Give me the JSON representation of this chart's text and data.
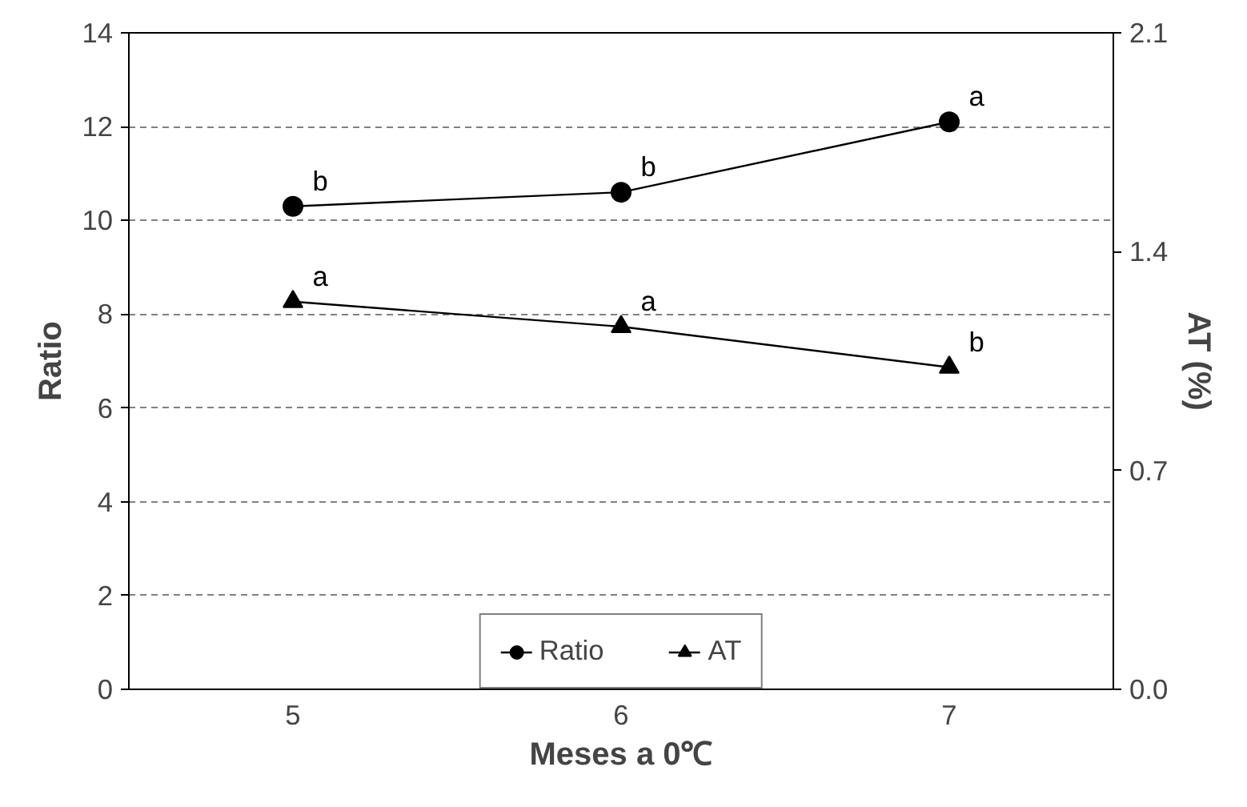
{
  "chart_data": {
    "type": "line",
    "xlabel": "Meses a 0℃",
    "ylabel": "Ratio",
    "y2label": "AT (%)",
    "categories": [
      "5",
      "6",
      "7"
    ],
    "series": [
      {
        "name": "Ratio",
        "color": "#000000",
        "values": [
          10.3,
          10.6,
          12.1
        ],
        "marker": "circle"
      },
      {
        "name": "AT",
        "color": "#000000",
        "values": [
          1.24,
          1.16,
          1.03
        ],
        "marker": "triangle",
        "axis": "y2"
      }
    ],
    "ylim": [
      0,
      14
    ],
    "yticks": [
      0,
      2,
      4,
      6,
      8,
      10,
      12,
      14
    ],
    "y2lim": [
      0,
      2.1
    ],
    "y2ticks": [
      {
        "value": 0,
        "label": "0.0"
      },
      0.7,
      1.4,
      2.1
    ],
    "grid": "y",
    "legend": "bottom",
    "line_style": "solid",
    "annotations": [
      {
        "text": "b",
        "x": "5",
        "y": 10.3
      },
      {
        "text": "b",
        "x": "6",
        "y": 10.6
      },
      {
        "text": "a",
        "x": "7",
        "y": 12.1
      },
      {
        "text": "a",
        "x": "5",
        "y": 8.27
      },
      {
        "text": "a",
        "x": "6",
        "y": 7.73
      },
      {
        "text": "b",
        "x": "7",
        "y": 6.87
      }
    ]
  }
}
